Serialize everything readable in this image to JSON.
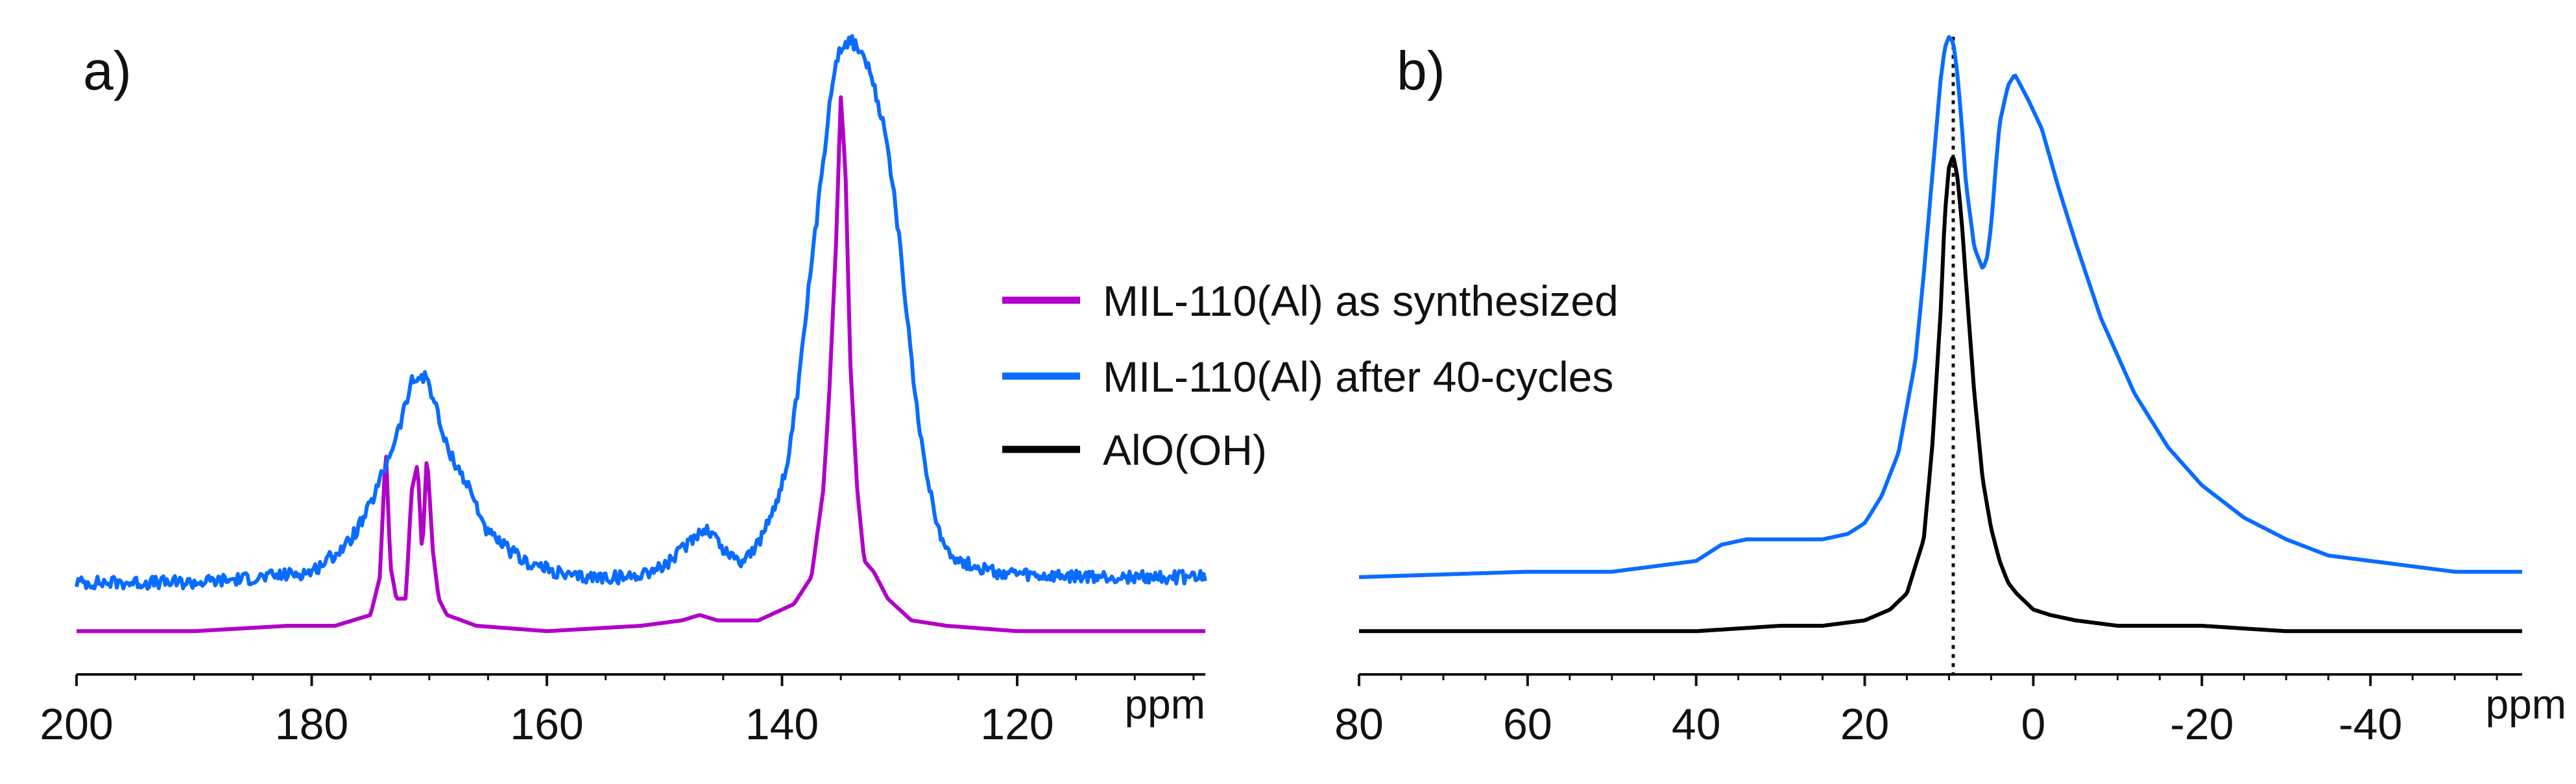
{
  "figure": {
    "legend": [
      {
        "label": "MIL-110(Al) as synthesized",
        "color": "#b100c8"
      },
      {
        "label": "MIL-110(Al) after 40-cycles",
        "color": "#0a6cff"
      },
      {
        "label": "AlO(OH)",
        "color": "#000000"
      }
    ]
  },
  "chart_data": [
    {
      "type": "line",
      "panel_label": "a)",
      "title": "",
      "xlabel": "ppm",
      "ylabel": "",
      "x_reversed": true,
      "xlim": [
        200,
        104
      ],
      "ylim": [
        -0.05,
        1.12
      ],
      "x_ticks": [
        200,
        180,
        160,
        140,
        120
      ],
      "x_tick_labels": [
        "200",
        "180",
        "160",
        "140",
        "120"
      ],
      "grid": false,
      "y_axis_visible": false,
      "series": [
        {
          "name": "MIL-110(Al) as synthesized",
          "color": "#b100c8",
          "x": [
            200,
            190,
            182,
            178,
            175,
            174.2,
            173.7,
            173.3,
            172.8,
            172.0,
            171.5,
            171.0,
            170.6,
            170.2,
            169.7,
            169.2,
            168.5,
            166,
            160,
            152,
            148.5,
            147,
            145.5,
            142,
            139,
            137.5,
            136.5,
            136,
            135.4,
            135.0,
            134.6,
            134.2,
            133.6,
            133.0,
            132.2,
            131.0,
            129,
            126,
            120,
            110,
            104
          ],
          "y": [
            0.0,
            0.0,
            0.01,
            0.01,
            0.03,
            0.1,
            0.34,
            0.12,
            0.06,
            0.06,
            0.26,
            0.31,
            0.14,
            0.33,
            0.15,
            0.06,
            0.03,
            0.01,
            0.0,
            0.01,
            0.02,
            0.03,
            0.02,
            0.02,
            0.05,
            0.1,
            0.26,
            0.43,
            0.72,
            0.99,
            0.85,
            0.5,
            0.26,
            0.13,
            0.11,
            0.06,
            0.02,
            0.01,
            0.0,
            0.0,
            0.0
          ]
        },
        {
          "name": "MIL-110(Al) after 40-cycles",
          "color": "#0a6cff",
          "x": [
            200,
            190,
            184,
            180,
            177,
            175.5,
            174.5,
            173.5,
            172.5,
            171.5,
            170.8,
            170.2,
            169.5,
            168.7,
            167.5,
            166.5,
            165,
            162,
            158,
            153,
            150,
            148.5,
            147.3,
            146.6,
            145.8,
            145,
            143.5,
            142,
            140.5,
            139.5,
            138.5,
            137.8,
            137,
            136.5,
            136,
            135.5,
            135,
            134.5,
            134,
            133.5,
            133,
            132.5,
            132,
            131.2,
            130.5,
            129.5,
            128.5,
            127.5,
            126.5,
            125,
            122,
            118,
            112,
            104
          ],
          "y": [
            0.09,
            0.09,
            0.1,
            0.11,
            0.16,
            0.21,
            0.26,
            0.32,
            0.38,
            0.46,
            0.47,
            0.47,
            0.42,
            0.35,
            0.3,
            0.26,
            0.18,
            0.13,
            0.1,
            0.1,
            0.12,
            0.15,
            0.18,
            0.19,
            0.18,
            0.15,
            0.13,
            0.16,
            0.24,
            0.31,
            0.47,
            0.62,
            0.77,
            0.87,
            0.97,
            1.05,
            1.08,
            1.09,
            1.09,
            1.08,
            1.06,
            1.03,
            0.99,
            0.92,
            0.82,
            0.61,
            0.4,
            0.27,
            0.17,
            0.13,
            0.11,
            0.1,
            0.1,
            0.1
          ],
          "noise": 0.012
        }
      ]
    },
    {
      "type": "line",
      "panel_label": "b)",
      "title": "",
      "xlabel": "ppm",
      "ylabel": "",
      "x_reversed": true,
      "xlim": [
        80,
        -58
      ],
      "ylim": [
        -0.05,
        1.12
      ],
      "x_ticks": [
        80,
        60,
        40,
        20,
        0,
        -20,
        -40
      ],
      "x_tick_labels": [
        "80",
        "60",
        "40",
        "20",
        "0",
        "-20",
        "-40"
      ],
      "grid": false,
      "y_axis_visible": false,
      "annotations": [
        {
          "type": "vertical_dotted_line",
          "x": 9.5
        }
      ],
      "series": [
        {
          "name": "MIL-110(Al) after 40-cycles",
          "color": "#0a6cff",
          "x": [
            80,
            60,
            50,
            45,
            40,
            37,
            34,
            31,
            28,
            25,
            22,
            20,
            18,
            16,
            14,
            13,
            12,
            11,
            10.5,
            10,
            9.5,
            9,
            8.5,
            8,
            7,
            6,
            5.5,
            5,
            4.5,
            4,
            3,
            2.2,
            1.5,
            0.5,
            -1,
            -3,
            -5,
            -8,
            -12,
            -16,
            -20,
            -25,
            -30,
            -35,
            -40,
            -45,
            -50,
            -58
          ],
          "y": [
            0.1,
            0.11,
            0.11,
            0.12,
            0.13,
            0.16,
            0.17,
            0.17,
            0.17,
            0.17,
            0.18,
            0.2,
            0.25,
            0.33,
            0.5,
            0.66,
            0.84,
            1.02,
            1.08,
            1.1,
            1.09,
            1.03,
            0.94,
            0.83,
            0.71,
            0.67,
            0.69,
            0.75,
            0.85,
            0.94,
            1.01,
            1.03,
            1.01,
            0.98,
            0.93,
            0.82,
            0.72,
            0.58,
            0.44,
            0.34,
            0.27,
            0.21,
            0.17,
            0.14,
            0.13,
            0.12,
            0.11,
            0.11
          ]
        },
        {
          "name": "AlO(OH)",
          "color": "#000000",
          "x": [
            80,
            60,
            40,
            30,
            25,
            20,
            17,
            15,
            13,
            12,
            11,
            10.5,
            10,
            9.5,
            9,
            8.5,
            8,
            7,
            6,
            5,
            4,
            3,
            2,
            0,
            -2,
            -5,
            -10,
            -20,
            -30,
            -40,
            -58
          ],
          "y": [
            0.0,
            0.0,
            0.0,
            0.01,
            0.01,
            0.02,
            0.04,
            0.07,
            0.17,
            0.34,
            0.59,
            0.77,
            0.86,
            0.88,
            0.84,
            0.76,
            0.65,
            0.44,
            0.28,
            0.19,
            0.13,
            0.09,
            0.07,
            0.04,
            0.03,
            0.02,
            0.01,
            0.01,
            0.0,
            0.0,
            0.0
          ]
        }
      ]
    }
  ]
}
